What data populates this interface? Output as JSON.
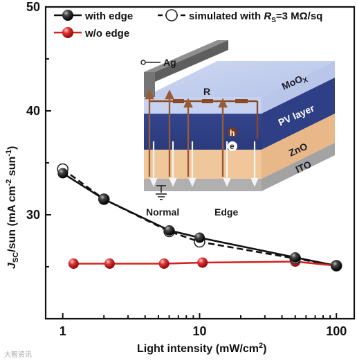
{
  "chart_data": {
    "type": "line",
    "x_scale": "log",
    "xlabel": "Light intensity (mW/cm",
    "xlabel_sup": "2",
    "xlabel_end": ")",
    "ylabel_parts": [
      "J",
      "SC",
      "/sun (mA cm",
      "-2",
      " sun",
      "-1",
      ")"
    ],
    "xlim": [
      0.75,
      135
    ],
    "ylim": [
      20,
      50
    ],
    "x_ticks": [
      1,
      10,
      100
    ],
    "x_tick_labels": [
      "1",
      "10",
      "100"
    ],
    "y_ticks": [
      30,
      40,
      50
    ],
    "y_tick_labels": [
      "30",
      "40",
      "50"
    ],
    "legend": [
      {
        "label": "with edge"
      },
      {
        "label_parts": [
          "simulated with ",
          "R",
          "S",
          "=3 MΩ/sq"
        ]
      },
      {
        "label": "w/o edge"
      }
    ],
    "series": [
      {
        "name": "with edge",
        "marker": "black-sphere",
        "color": "#111111",
        "x": [
          1,
          2,
          6,
          10,
          50,
          100
        ],
        "y": [
          34.0,
          31.5,
          28.5,
          27.8,
          25.9,
          25.1
        ]
      },
      {
        "name": "simulated with RS=3 MΩ/sq",
        "marker": "open-circle",
        "color": "#111111",
        "line": "dashed",
        "x": [
          1,
          2,
          6,
          10,
          50,
          100
        ],
        "y": [
          34.4,
          31.5,
          28.4,
          27.4,
          25.8,
          25.1
        ]
      },
      {
        "name": "w/o edge",
        "marker": "red-sphere",
        "color": "#d42020",
        "x": [
          1.2,
          2.2,
          5.5,
          10.5,
          50,
          100
        ],
        "y": [
          25.3,
          25.3,
          25.3,
          25.4,
          25.5,
          25.1
        ]
      }
    ]
  },
  "inset": {
    "labels": {
      "electrode": "Ag",
      "resistor": "R",
      "moox_main": "MoO",
      "moox_sub": "X",
      "pv": "PV layer",
      "zno": "ZnO",
      "ito": "ITO",
      "hole": "h",
      "electron": "e",
      "normal": "Normal",
      "edge": "Edge"
    }
  },
  "watermark": "大智资讯"
}
